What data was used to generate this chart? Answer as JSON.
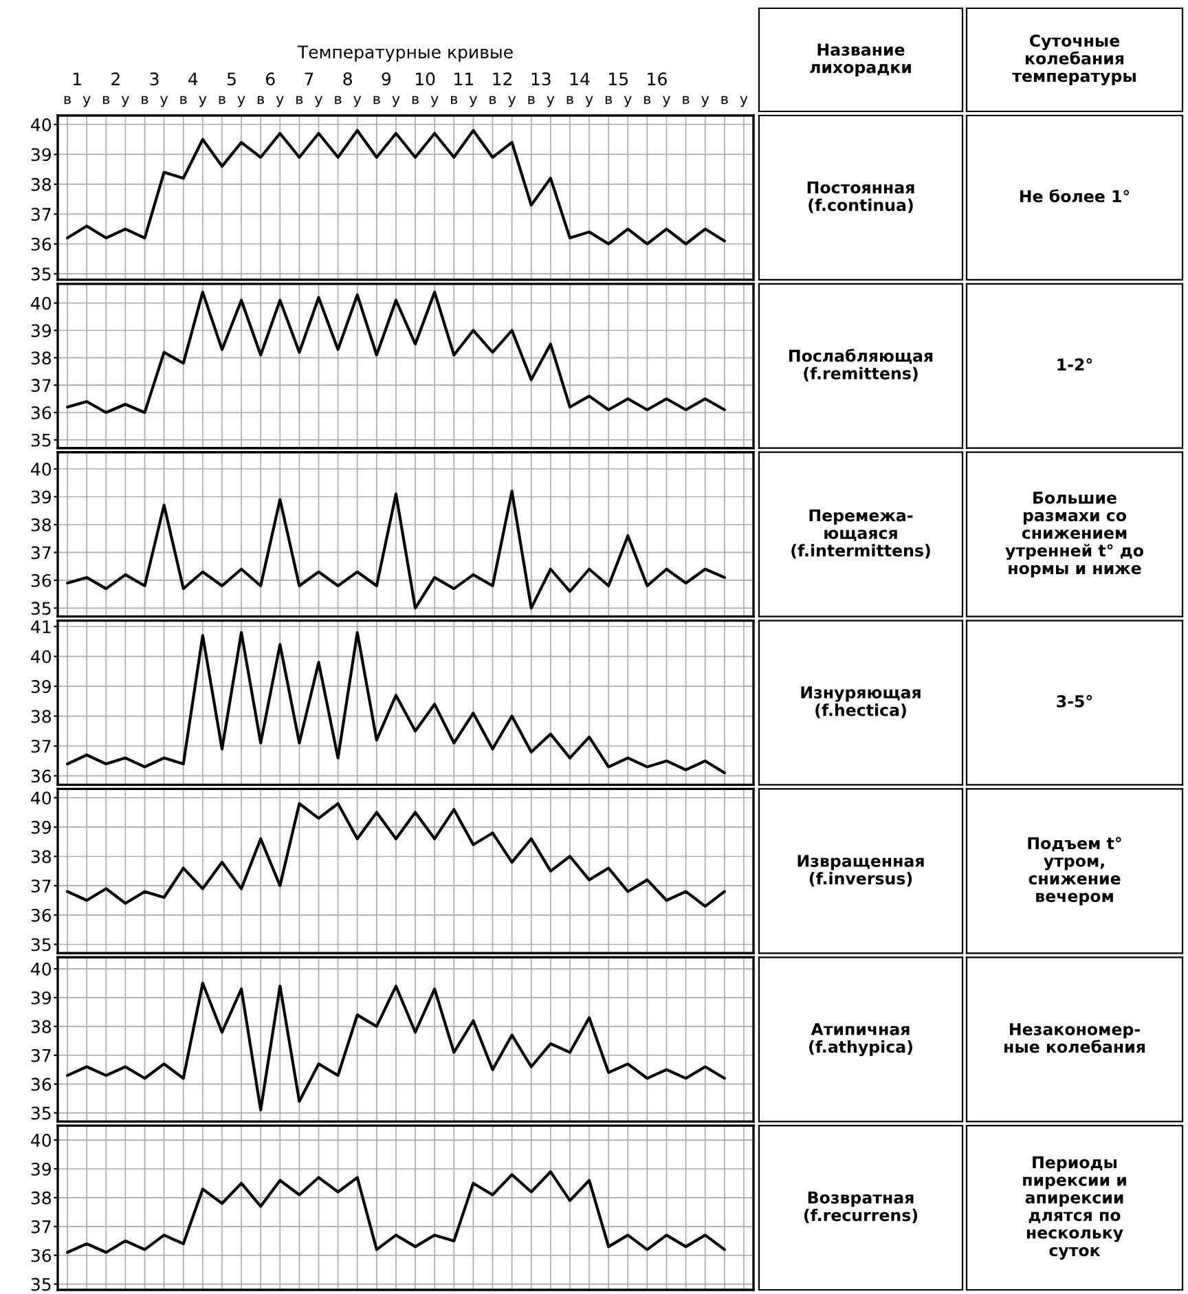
{
  "chart_data": [
    {
      "type": "line",
      "title": "Температурные кривые",
      "categories": [
        "в",
        "у",
        "в",
        "у",
        "в",
        "у",
        "в",
        "у",
        "в",
        "у",
        "в",
        "у",
        "в",
        "у",
        "в",
        "у",
        "в",
        "у",
        "в",
        "у",
        "в",
        "у",
        "в",
        "у",
        "в",
        "у",
        "в",
        "у",
        "в",
        "у",
        "в",
        "у",
        "в",
        "у",
        "в",
        "у"
      ],
      "x2lim": [
        0,
        18
      ],
      "x2ticks": [
        {
          "value": 0.5,
          "label": "1"
        },
        {
          "value": 1.5,
          "label": "2"
        },
        {
          "value": 2.5,
          "label": "3"
        },
        {
          "value": 3.5,
          "label": "4"
        },
        {
          "value": 4.5,
          "label": "5"
        },
        {
          "value": 5.5,
          "label": "6"
        },
        {
          "value": 6.5,
          "label": "7"
        },
        {
          "value": 7.5,
          "label": "8"
        },
        {
          "value": 8.5,
          "label": "9"
        },
        {
          "value": 9.5,
          "label": "10"
        },
        {
          "value": 10.5,
          "label": "11"
        },
        {
          "value": 11.5,
          "label": "12"
        },
        {
          "value": 12.5,
          "label": "13"
        },
        {
          "value": 13.5,
          "label": "14"
        },
        {
          "value": 14.5,
          "label": "15"
        },
        {
          "value": 15.5,
          "label": "16"
        }
      ],
      "color": "#000000",
      "values": [
        36.2,
        36.6,
        36.2,
        36.5,
        36.2,
        38.4,
        38.2,
        39.5,
        38.6,
        39.4,
        38.9,
        39.7,
        38.9,
        39.7,
        38.9,
        39.8,
        38.9,
        39.7,
        38.9,
        39.7,
        38.9,
        39.8,
        38.9,
        39.4,
        37.3,
        38.2,
        36.2,
        36.4,
        36.0,
        36.5,
        36.0,
        36.5,
        36.0,
        36.5,
        36.1,
        null
      ],
      "ylim": [
        34.8,
        40.3
      ],
      "yticks": [
        35,
        36,
        37,
        38,
        39,
        40
      ],
      "grid": true,
      "annotations": [
        "Название\nлихорадки",
        "Суточные\nколебания\nтемпературы",
        "Постоянная\n(f.continua)",
        "Не более 1°"
      ]
    },
    {
      "type": "line",
      "categories": [
        null,
        null,
        null,
        null,
        null,
        null,
        null,
        null,
        null,
        null,
        null,
        null,
        null,
        null,
        null,
        null,
        null,
        null,
        null,
        null,
        null,
        null,
        null,
        null,
        null,
        null,
        null,
        null,
        null,
        null,
        null,
        null,
        null,
        null,
        null,
        null
      ],
      "tick_labels": "y",
      "color": "#000000",
      "values": [
        36.2,
        36.4,
        36.0,
        36.3,
        36.0,
        38.2,
        37.8,
        40.4,
        38.3,
        40.1,
        38.1,
        40.1,
        38.2,
        40.2,
        38.3,
        40.3,
        38.1,
        40.1,
        38.5,
        40.4,
        38.1,
        39.0,
        38.2,
        39.0,
        37.2,
        38.5,
        36.2,
        36.6,
        36.1,
        36.5,
        36.1,
        36.5,
        36.1,
        36.5,
        36.1,
        null
      ],
      "ylim": [
        34.7,
        40.7
      ],
      "yticks": [
        35,
        36,
        37,
        38,
        39,
        40
      ],
      "grid": true,
      "annotations": [
        "Послабляющая\n(f.remittens)",
        "1-2°"
      ]
    },
    {
      "type": "line",
      "categories": [
        null,
        null,
        null,
        null,
        null,
        null,
        null,
        null,
        null,
        null,
        null,
        null,
        null,
        null,
        null,
        null,
        null,
        null,
        null,
        null,
        null,
        null,
        null,
        null,
        null,
        null,
        null,
        null,
        null,
        null,
        null,
        null,
        null,
        null,
        null,
        null
      ],
      "tick_labels": "y",
      "color": "#000000",
      "values": [
        35.9,
        36.1,
        35.7,
        36.2,
        35.8,
        38.7,
        35.7,
        36.3,
        35.8,
        36.4,
        35.8,
        38.9,
        35.8,
        36.3,
        35.8,
        36.3,
        35.8,
        39.1,
        35.0,
        36.1,
        35.7,
        36.2,
        35.8,
        39.2,
        35.0,
        36.4,
        35.6,
        36.4,
        35.8,
        37.6,
        35.8,
        36.4,
        35.9,
        36.4,
        36.1,
        null
      ],
      "ylim": [
        34.7,
        40.6
      ],
      "yticks": [
        35,
        36,
        37,
        38,
        39,
        40
      ],
      "grid": true,
      "annotations": [
        "Перемежа-\nющаяся\n(f.intermittens)",
        "Большие\nразмахи со\nснижением\nутренней t° до\nнормы и ниже"
      ]
    },
    {
      "type": "line",
      "categories": [
        null,
        null,
        null,
        null,
        null,
        null,
        null,
        null,
        null,
        null,
        null,
        null,
        null,
        null,
        null,
        null,
        null,
        null,
        null,
        null,
        null,
        null,
        null,
        null,
        null,
        null,
        null,
        null,
        null,
        null,
        null,
        null,
        null,
        null,
        null,
        null
      ],
      "tick_labels": "y",
      "color": "#000000",
      "values": [
        36.4,
        36.7,
        36.4,
        36.6,
        36.3,
        36.6,
        36.4,
        40.7,
        36.9,
        40.8,
        37.1,
        40.4,
        37.1,
        39.8,
        36.6,
        40.8,
        37.2,
        38.7,
        37.5,
        38.4,
        37.1,
        38.1,
        36.9,
        38.0,
        36.8,
        37.4,
        36.6,
        37.3,
        36.3,
        36.6,
        36.3,
        36.5,
        36.2,
        36.5,
        36.1,
        null
      ],
      "ylim": [
        35.7,
        41.2
      ],
      "yticks": [
        36,
        37,
        38,
        39,
        40,
        41
      ],
      "grid": true,
      "annotations": [
        "Изнуряющая\n(f.hectica)",
        "3-5°"
      ]
    },
    {
      "type": "line",
      "categories": [
        null,
        null,
        null,
        null,
        null,
        null,
        null,
        null,
        null,
        null,
        null,
        null,
        null,
        null,
        null,
        null,
        null,
        null,
        null,
        null,
        null,
        null,
        null,
        null,
        null,
        null,
        null,
        null,
        null,
        null,
        null,
        null,
        null,
        null,
        null,
        null
      ],
      "tick_labels": "y",
      "color": "#000000",
      "values": [
        36.8,
        36.5,
        36.9,
        36.4,
        36.8,
        36.6,
        37.6,
        36.9,
        37.8,
        36.9,
        38.6,
        37.0,
        39.8,
        39.3,
        39.8,
        38.6,
        39.5,
        38.6,
        39.5,
        38.6,
        39.6,
        38.4,
        38.8,
        37.8,
        38.6,
        37.5,
        38.0,
        37.2,
        37.6,
        36.8,
        37.2,
        36.5,
        36.8,
        36.3,
        36.8,
        null
      ],
      "ylim": [
        34.7,
        40.3
      ],
      "yticks": [
        35,
        36,
        37,
        38,
        39,
        40
      ],
      "grid": true,
      "annotations": [
        "Извращенная\n(f.inversus)",
        "Подъем t°\nутром,\nснижение\nвечером"
      ]
    },
    {
      "type": "line",
      "categories": [
        null,
        null,
        null,
        null,
        null,
        null,
        null,
        null,
        null,
        null,
        null,
        null,
        null,
        null,
        null,
        null,
        null,
        null,
        null,
        null,
        null,
        null,
        null,
        null,
        null,
        null,
        null,
        null,
        null,
        null,
        null,
        null,
        null,
        null,
        null,
        null
      ],
      "tick_labels": "y",
      "color": "#000000",
      "values": [
        36.3,
        36.6,
        36.3,
        36.6,
        36.2,
        36.7,
        36.2,
        39.5,
        37.8,
        39.3,
        35.1,
        39.4,
        35.4,
        36.7,
        36.3,
        38.4,
        38.0,
        39.4,
        37.8,
        39.3,
        37.1,
        38.2,
        36.5,
        37.7,
        36.6,
        37.4,
        37.1,
        38.3,
        36.4,
        36.7,
        36.2,
        36.5,
        36.2,
        36.6,
        36.2,
        null
      ],
      "ylim": [
        34.7,
        40.4
      ],
      "yticks": [
        35,
        36,
        37,
        38,
        39,
        40
      ],
      "grid": true,
      "annotations": [
        "Атипичная\n(f.athypica)",
        "Незакономер-\nные колебания"
      ]
    },
    {
      "type": "line",
      "categories": [
        null,
        null,
        null,
        null,
        null,
        null,
        null,
        null,
        null,
        null,
        null,
        null,
        null,
        null,
        null,
        null,
        null,
        null,
        null,
        null,
        null,
        null,
        null,
        null,
        null,
        null,
        null,
        null,
        null,
        null,
        null,
        null,
        null,
        null,
        null,
        null
      ],
      "tick_labels": "y",
      "color": "#000000",
      "values": [
        36.1,
        36.4,
        36.1,
        36.5,
        36.2,
        36.7,
        36.4,
        38.3,
        37.8,
        38.5,
        37.7,
        38.6,
        38.1,
        38.7,
        38.2,
        38.7,
        36.2,
        36.7,
        36.3,
        36.7,
        36.5,
        38.5,
        38.1,
        38.8,
        38.2,
        38.9,
        37.9,
        38.6,
        36.3,
        36.7,
        36.2,
        36.7,
        36.3,
        36.7,
        36.2,
        null
      ],
      "ylim": [
        34.8,
        40.5
      ],
      "yticks": [
        35,
        36,
        37,
        38,
        39,
        40
      ],
      "grid": true,
      "annotations": [
        "Возвратная\n(f.recurrens)",
        "Периоды\nпирексии и\nапирексии\nдлятся по\nнескольку\nсуток"
      ]
    }
  ]
}
